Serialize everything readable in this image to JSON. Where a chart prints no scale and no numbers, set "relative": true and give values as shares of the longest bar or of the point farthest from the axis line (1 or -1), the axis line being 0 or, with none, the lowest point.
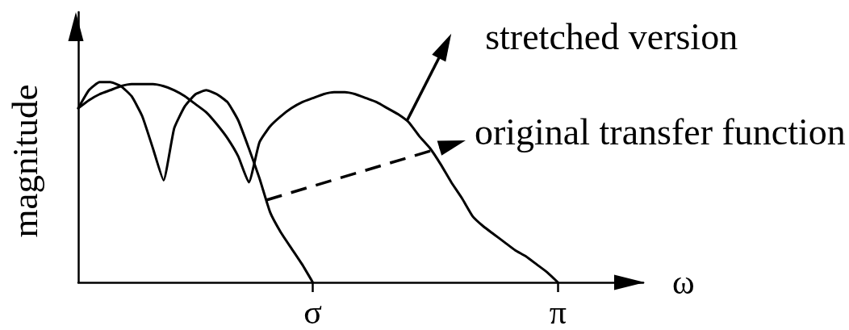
{
  "chart_data": {
    "type": "line",
    "relative": true,
    "xlabel": "ω",
    "ylabel": "magnitude",
    "categories": [
      null,
      null,
      null,
      null,
      null,
      null,
      null,
      null,
      null,
      null,
      null,
      null,
      null,
      null,
      null,
      null,
      null,
      null,
      null,
      null,
      null,
      null,
      "σ",
      null,
      null,
      null,
      null,
      null,
      null,
      null,
      null,
      null,
      null,
      null,
      null,
      null,
      null,
      null,
      null,
      null,
      null,
      null,
      null,
      null,
      null,
      "π",
      null,
      null,
      null,
      null,
      null,
      null,
      null,
      null
    ],
    "series": [
      {
        "color": "#000000",
        "values": [
          0.87,
          0.96,
          1,
          1,
          0.98,
          0.93,
          0.83,
          0.67,
          0.51,
          0.77,
          0.88,
          0.94,
          0.96,
          0.94,
          0.9,
          0.81,
          0.67,
          0.52,
          0.35,
          0.25,
          0.17,
          0.09,
          0,
          null,
          null,
          null,
          null,
          null,
          null,
          null,
          null,
          null,
          null,
          null,
          null,
          null,
          null,
          null,
          null,
          null,
          null,
          null,
          null,
          null,
          null,
          null,
          null,
          null,
          null,
          null,
          null,
          null,
          null,
          null
        ]
      },
      {
        "color": "#000000",
        "values": [
          0.87,
          0.91,
          0.94,
          0.96,
          0.98,
          0.99,
          0.99,
          0.99,
          0.98,
          0.96,
          0.93,
          0.89,
          0.85,
          0.79,
          0.72,
          0.63,
          0.5,
          0.7,
          0.78,
          0.83,
          0.87,
          0.9,
          0.92,
          0.94,
          0.95,
          0.95,
          0.94,
          0.92,
          0.9,
          0.87,
          0.84,
          0.8,
          0.73,
          0.67,
          0.59,
          0.5,
          0.42,
          0.33,
          0.28,
          0.24,
          0.2,
          0.16,
          0.13,
          0.09,
          0.05,
          0,
          null,
          null,
          null,
          null,
          null,
          null,
          null,
          null
        ]
      }
    ],
    "annotations": [
      "stretched version",
      "original transfer function"
    ],
    "marker": "none",
    "line_style": "solid"
  }
}
